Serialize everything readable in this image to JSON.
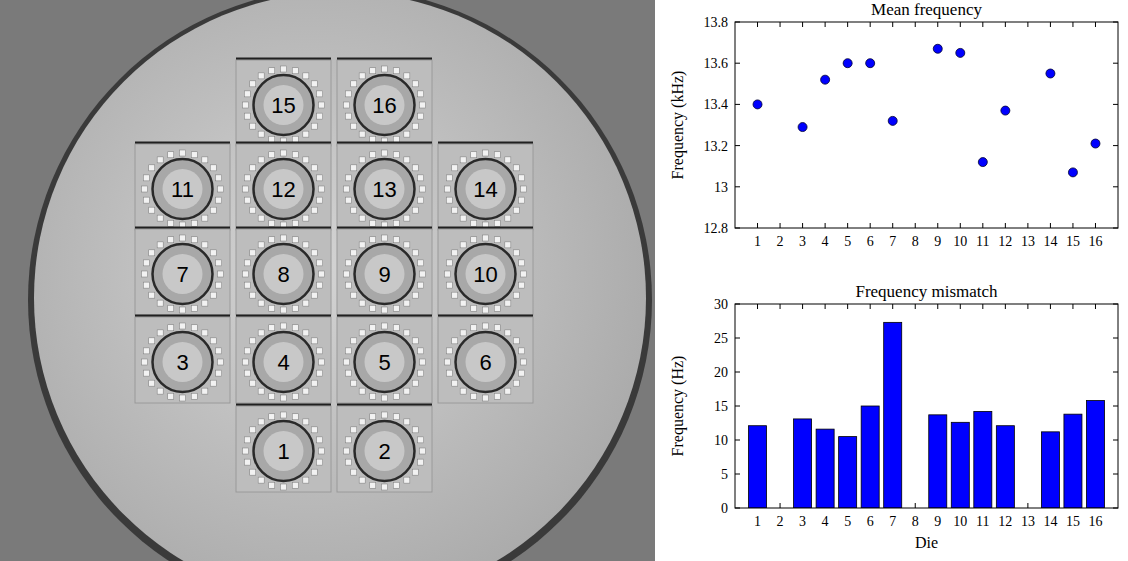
{
  "wafer": {
    "rows": [
      [
        "15",
        "16"
      ],
      [
        "11",
        "12",
        "13",
        "14"
      ],
      [
        "7",
        "8",
        "9",
        "10"
      ],
      [
        "3",
        "4",
        "5",
        "6"
      ],
      [
        "1",
        "2"
      ]
    ]
  },
  "chart_data": [
    {
      "type": "scatter",
      "title": "Mean frequency",
      "y_label": "Frequency (kHz)",
      "x": [
        1,
        2,
        3,
        4,
        5,
        6,
        7,
        8,
        9,
        10,
        11,
        12,
        13,
        14,
        15,
        16
      ],
      "values": [
        13.4,
        null,
        13.29,
        13.52,
        13.6,
        13.6,
        13.32,
        null,
        13.67,
        13.65,
        13.12,
        13.37,
        null,
        13.55,
        13.07,
        13.21
      ],
      "color": "#0000ff",
      "marker": "circle",
      "xlim": [
        0,
        17
      ],
      "xticks": [
        1,
        2,
        3,
        4,
        5,
        6,
        7,
        8,
        9,
        10,
        11,
        12,
        13,
        14,
        15,
        16
      ],
      "ylim": [
        12.8,
        13.8
      ],
      "yticks": [
        12.8,
        13,
        13.2,
        13.4,
        13.6,
        13.8
      ],
      "grid": false
    },
    {
      "type": "bar",
      "title": "Frequency mismatch",
      "x_label": "Die",
      "y_label": "Frequency (Hz)",
      "categories": [
        "1",
        "2",
        "3",
        "4",
        "5",
        "6",
        "7",
        "8",
        "9",
        "10",
        "11",
        "12",
        "13",
        "14",
        "15",
        "16"
      ],
      "values": [
        12.1,
        null,
        13.1,
        11.6,
        10.5,
        15.0,
        27.3,
        null,
        13.7,
        12.6,
        14.2,
        12.1,
        null,
        11.2,
        13.8,
        15.8
      ],
      "color": "#0000ff",
      "ylim": [
        0,
        30
      ],
      "yticks": [
        0,
        5,
        10,
        15,
        20,
        25,
        30
      ],
      "grid": false
    }
  ]
}
